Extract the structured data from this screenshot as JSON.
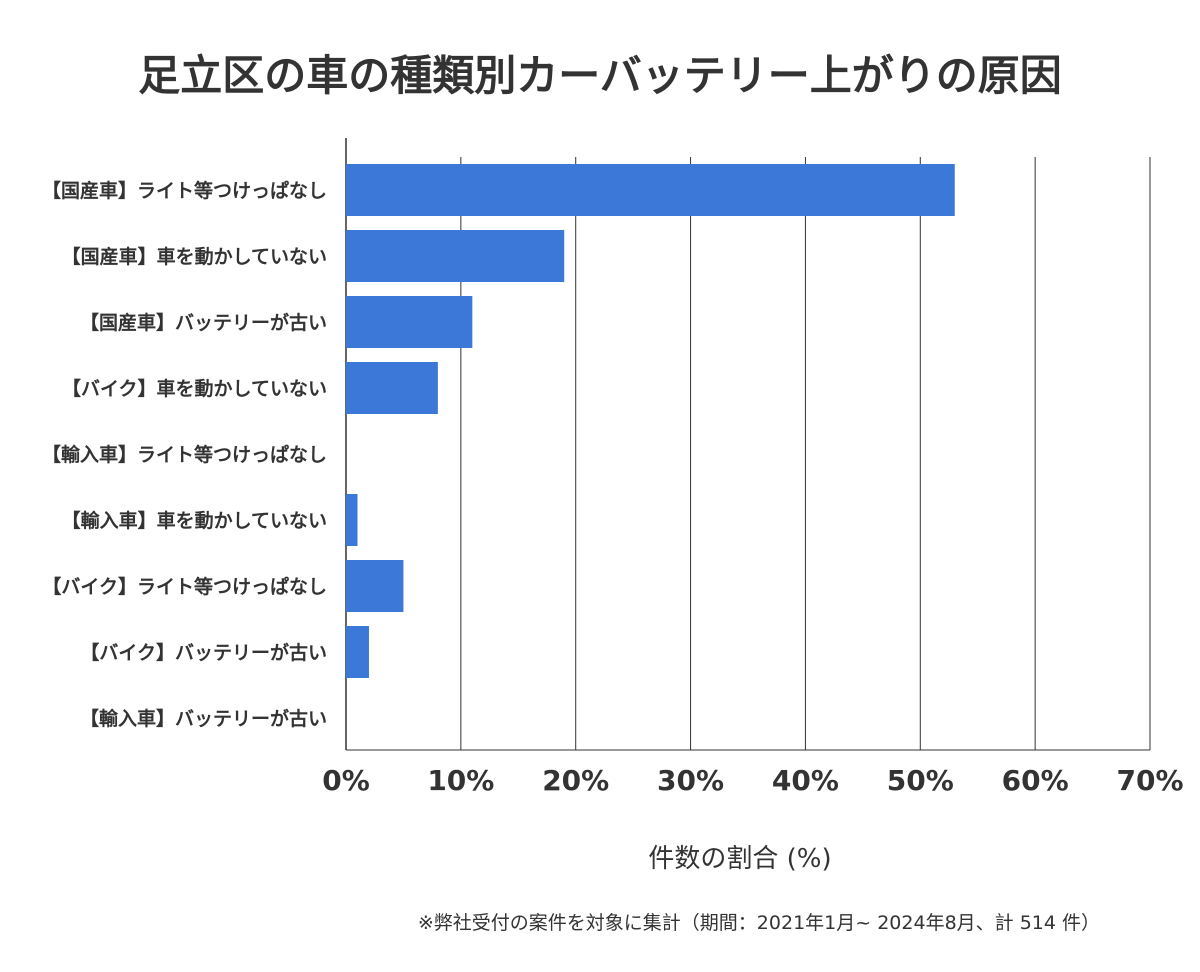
{
  "chart_data": {
    "type": "bar",
    "orientation": "horizontal",
    "title": "足立区の車の種類別カーバッテリー上がりの原因",
    "xlabel": "件数の割合 (%)",
    "ylabel": "",
    "categories": [
      "【国産車】ライト等つけっぱなし",
      "【国産車】車を動かしていない",
      "【国産車】バッテリーが古い",
      "【バイク】車を動かしていない",
      "【輸入車】ライト等つけっぱなし",
      "【輸入車】車を動かしていない",
      "【バイク】ライト等つけっぱなし",
      "【バイク】バッテリーが古い",
      "【輸入車】バッテリーが古い"
    ],
    "values": [
      53.0,
      19.0,
      11.0,
      8.0,
      0,
      1.0,
      5.0,
      2.0,
      0
    ],
    "xlim": [
      0,
      70
    ],
    "xticks": [
      "0%",
      "10%",
      "20%",
      "30%",
      "40%",
      "50%",
      "60%",
      "70%"
    ],
    "grid": true,
    "bar_color": "#3c78d8",
    "note": "※弊社受付の案件を対象に集計（期間：2021年1月~ 2024年8月、計 514 件）"
  }
}
